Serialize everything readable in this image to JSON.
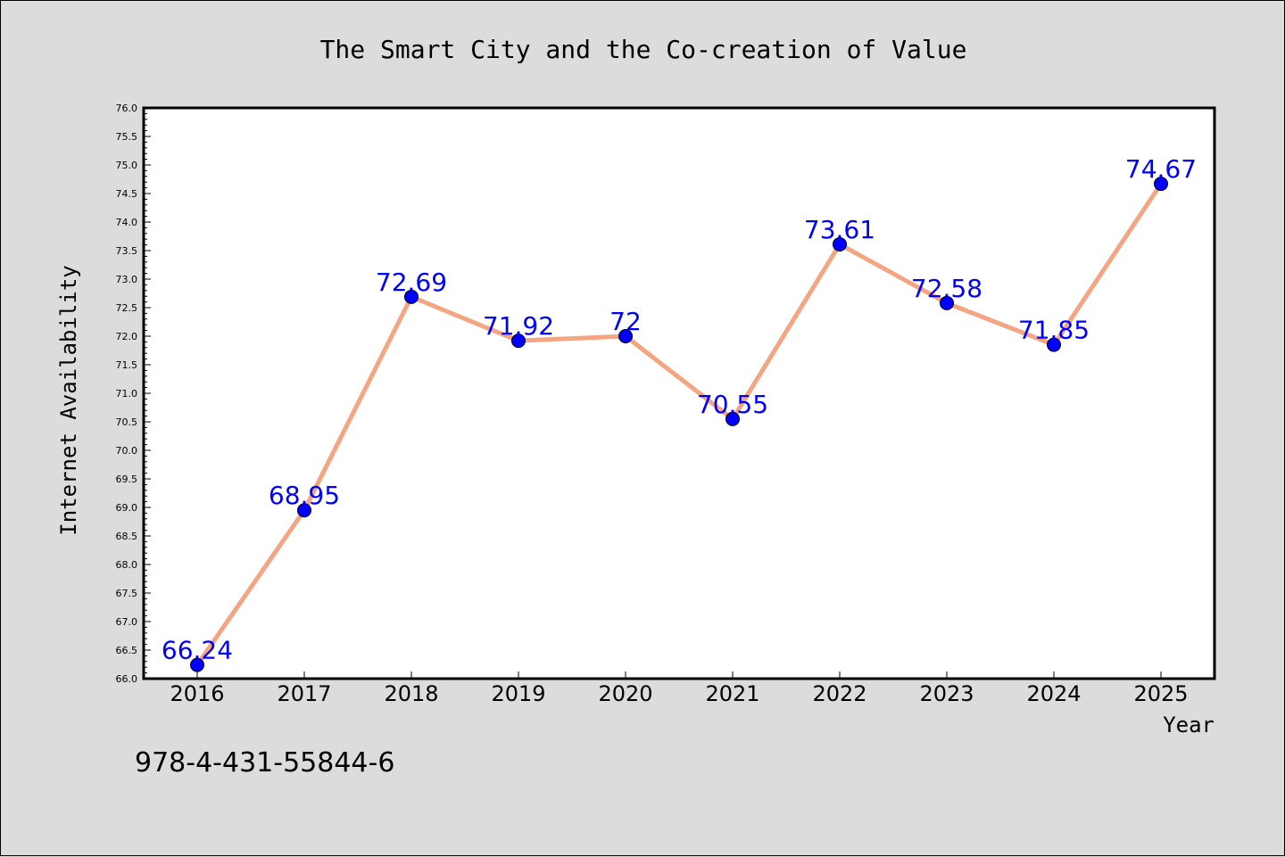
{
  "chart_data": {
    "type": "line",
    "title": "The Smart City and the Co-creation of Value",
    "xlabel": "Year",
    "ylabel": "Internet Availability",
    "x": [
      "2016",
      "2017",
      "2018",
      "2019",
      "2020",
      "2021",
      "2022",
      "2023",
      "2024",
      "2025"
    ],
    "values": [
      66.24,
      68.95,
      72.69,
      71.92,
      72,
      70.55,
      73.61,
      72.58,
      71.85,
      74.67
    ],
    "point_labels": [
      "66.24",
      "68.95",
      "72.69",
      "71.92",
      "72",
      "70.55",
      "73.61",
      "72.58",
      "71.85",
      "74.67"
    ],
    "ylim": [
      66.0,
      76.0
    ],
    "y_ticks": [
      "66.0",
      "66.5",
      "67.0",
      "67.5",
      "68.0",
      "68.5",
      "69.0",
      "69.5",
      "70.0",
      "70.5",
      "71.0",
      "71.5",
      "72.0",
      "72.5",
      "73.0",
      "73.5",
      "74.0",
      "74.5",
      "75.0",
      "75.5",
      "76.0"
    ],
    "grid": false,
    "legend": "none",
    "colors": {
      "line": "#f4a582",
      "marker": "#0000ff",
      "point_label": "#0000ff",
      "background": "#dcdcdc",
      "plot_area": "#ffffff"
    }
  },
  "footer_text": "978-4-431-55844-6"
}
